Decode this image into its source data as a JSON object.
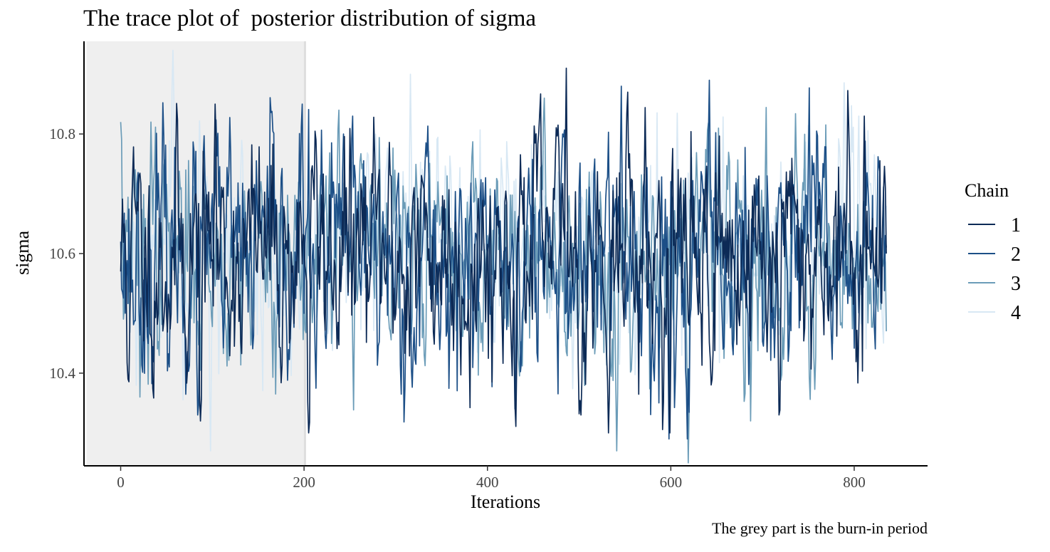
{
  "chart_data": {
    "type": "line",
    "title": "The trace plot of  posterior distribution of sigma",
    "xlabel": "Iterations",
    "ylabel": "sigma",
    "caption": "The grey part is the burn-in period",
    "xlim": [
      -40,
      880
    ],
    "ylim": [
      10.245,
      10.955
    ],
    "x_ticks": [
      0,
      200,
      400,
      600,
      800
    ],
    "x_tick_labels": [
      "0",
      "200",
      "400",
      "600",
      "800"
    ],
    "y_ticks": [
      10.4,
      10.6,
      10.8
    ],
    "y_tick_labels": [
      "10.4",
      "10.6",
      "10.8"
    ],
    "grid": false,
    "n_iterations": 836,
    "shaded_region": {
      "x_start": 0,
      "x_end": 201,
      "color": "#efefef",
      "edge_color": "#dedede"
    },
    "legend": {
      "title": "Chain",
      "position": "right",
      "items": [
        {
          "label": "1",
          "color": "#0c2a56"
        },
        {
          "label": "2",
          "color": "#1c4f87"
        },
        {
          "label": "3",
          "color": "#6b9cb8"
        },
        {
          "label": "4",
          "color": "#d8e8f4"
        }
      ]
    },
    "series": [
      {
        "name": "1",
        "color": "#0c2a56",
        "seed": 11,
        "mean": 10.6,
        "sd": 0.1,
        "phi": 0.6,
        "clip": [
          10.3,
          10.92
        ],
        "anchors": [
          [
            0,
            10.57
          ],
          [
            8,
            10.39
          ],
          [
            87,
            10.32
          ],
          [
            103,
            10.85
          ],
          [
            200,
            10.63
          ],
          [
            205,
            10.28
          ],
          [
            213,
            10.79
          ],
          [
            486,
            10.91
          ],
          [
            502,
            10.33
          ],
          [
            553,
            10.87
          ],
          [
            599,
            10.3
          ],
          [
            718,
            10.33
          ],
          [
            811,
            10.83
          ],
          [
            835,
            10.6
          ]
        ]
      },
      {
        "name": "2",
        "color": "#1c4f87",
        "seed": 23,
        "mean": 10.59,
        "sd": 0.1,
        "phi": 0.6,
        "clip": [
          10.29,
          10.89
        ],
        "anchors": [
          [
            0,
            10.62
          ],
          [
            84,
            10.33
          ],
          [
            198,
            10.85
          ],
          [
            243,
            10.8
          ],
          [
            430,
            10.34
          ],
          [
            546,
            10.88
          ],
          [
            598,
            10.29
          ],
          [
            835,
            10.61
          ]
        ]
      },
      {
        "name": "3",
        "color": "#6b9cb8",
        "seed": 37,
        "mean": 10.6,
        "sd": 0.09,
        "phi": 0.55,
        "clip": [
          10.25,
          10.86
        ],
        "anchors": [
          [
            0,
            10.82
          ],
          [
            21,
            10.36
          ],
          [
            33,
            10.82
          ],
          [
            238,
            10.84
          ],
          [
            541,
            10.27
          ],
          [
            619,
            10.25
          ],
          [
            835,
            10.47
          ]
        ]
      },
      {
        "name": "4",
        "color": "#d8e8f4",
        "seed": 53,
        "mean": 10.61,
        "sd": 0.09,
        "phi": 0.5,
        "clip": [
          10.27,
          10.94
        ],
        "anchors": [
          [
            0,
            10.6
          ],
          [
            57,
            10.94
          ],
          [
            98,
            10.27
          ],
          [
            316,
            10.9
          ],
          [
            330,
            10.71
          ],
          [
            805,
            10.83
          ],
          [
            835,
            10.68
          ]
        ]
      }
    ]
  }
}
